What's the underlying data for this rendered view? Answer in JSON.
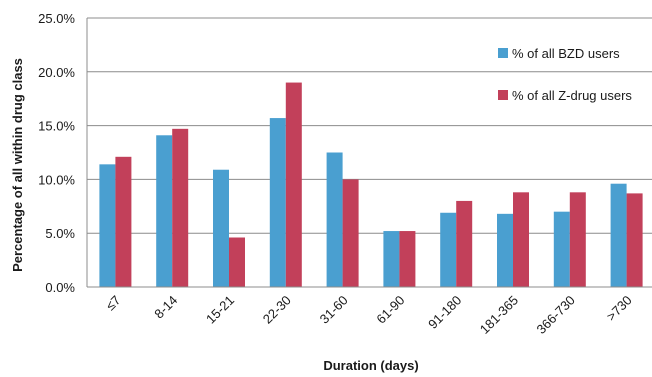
{
  "chart_data": {
    "type": "bar",
    "title": "",
    "xlabel": "Duration (days)",
    "ylabel": "Percentage of all within drug class",
    "categories": [
      "≤7",
      "8-14",
      "15-21",
      "22-30",
      "31-60",
      "61-90",
      "91-180",
      "181-365",
      "366-730",
      ">730"
    ],
    "series": [
      {
        "name": "% of all BZD users",
        "color": "#4a9fd0",
        "values": [
          11.4,
          14.1,
          10.9,
          15.7,
          12.5,
          5.2,
          6.9,
          6.8,
          7.0,
          9.6
        ]
      },
      {
        "name": "% of all Z-drug users",
        "color": "#c2405a",
        "values": [
          12.1,
          14.7,
          4.6,
          19.0,
          10.0,
          5.2,
          8.0,
          8.8,
          8.8,
          8.7
        ]
      }
    ],
    "ylim": [
      0,
      25
    ],
    "yticks": [
      0,
      5,
      10,
      15,
      20,
      25
    ],
    "ytick_labels": [
      "0.0%",
      "5.0%",
      "10.0%",
      "15.0%",
      "20.0%",
      "25.0%"
    ],
    "grid": true,
    "legend_position": "top-right"
  }
}
